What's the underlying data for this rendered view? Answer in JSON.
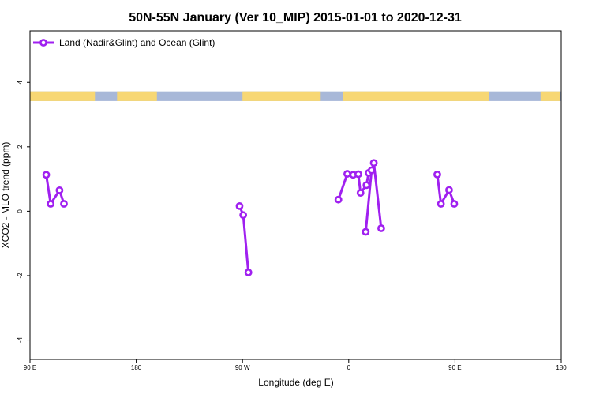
{
  "chart_data": {
    "type": "line",
    "title": "50N-55N January (Ver 10_MIP)   2015-01-01 to 2020-12-31",
    "xlabel": "Longitude (deg E)",
    "ylabel": "XCO2 - MLO trend (ppm)",
    "xlim": [
      90,
      450
    ],
    "ylim": [
      -4.6,
      5.6
    ],
    "x_ticks": [
      90,
      162,
      234,
      306,
      378,
      450
    ],
    "x_tick_labels": [
      "90 E",
      "180",
      "90 W",
      "0",
      "90 E",
      "180"
    ],
    "y_ticks": [
      -4,
      -2,
      0,
      2,
      4
    ],
    "y_tick_labels": [
      "-4",
      "-2",
      "0",
      "2",
      "4"
    ],
    "grid": false,
    "legend_position": "top-left",
    "series": [
      {
        "name": "Land (Nadir&Glint) and Ocean (Glint)",
        "color": "#a020f0",
        "segments": [
          [
            [
              101.0,
              1.13
            ],
            [
              104.0,
              0.23
            ],
            [
              110.0,
              0.65
            ],
            [
              113.0,
              0.23
            ]
          ],
          [
            [
              232.0,
              0.16
            ],
            [
              234.5,
              -0.12
            ],
            [
              238.0,
              -1.9
            ]
          ],
          [
            [
              299.0,
              0.36
            ],
            [
              305.0,
              1.16
            ],
            [
              309.0,
              1.13
            ],
            [
              312.5,
              1.15
            ],
            [
              314.0,
              0.57
            ],
            [
              318.0,
              0.81
            ],
            [
              319.5,
              1.19
            ]
          ],
          [
            [
              317.5,
              -0.64
            ],
            [
              321.5,
              1.27
            ],
            [
              323.0,
              1.5
            ],
            [
              328.0,
              -0.53
            ]
          ],
          [
            [
              366.0,
              1.14
            ],
            [
              368.5,
              0.23
            ],
            [
              374.0,
              0.66
            ],
            [
              377.5,
              0.23
            ]
          ]
        ]
      }
    ],
    "land_ocean_band": {
      "y_range": [
        3.42,
        3.72
      ],
      "land_color": "#f7d774",
      "ocean_color": "#a8b8d8",
      "land_longitudes": [
        [
          90,
          134
        ],
        [
          149,
          176
        ],
        [
          234,
          287
        ],
        [
          302,
          401
        ],
        [
          436,
          449
        ]
      ]
    }
  }
}
